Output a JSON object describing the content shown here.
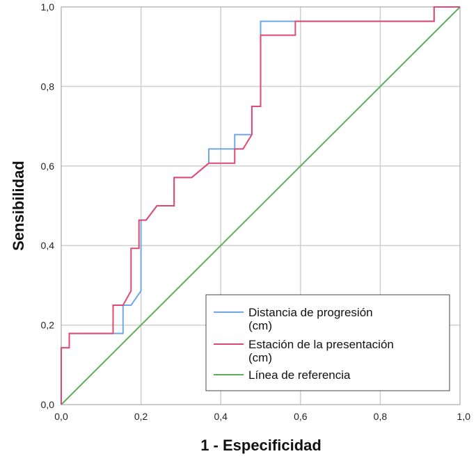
{
  "chart_data": {
    "type": "line",
    "title": "",
    "xlabel": "1 - Especificidad",
    "ylabel": "Sensibilidad",
    "xlim": [
      0,
      1
    ],
    "ylim": [
      0,
      1
    ],
    "grid": true,
    "legend_position": "bottom-right",
    "x_ticks": [
      "0,0",
      "0,2",
      "0,4",
      "0,6",
      "0,8",
      "1,0"
    ],
    "y_ticks": [
      "0,0",
      "0,2",
      "0,4",
      "0,6",
      "0,8",
      "1,0"
    ],
    "series": [
      {
        "name": "Distancia de progresión (cm)",
        "color": "#6fa8e8",
        "x": [
          0,
          0,
          0.02,
          0.02,
          0.155,
          0.155,
          0.175,
          0.175,
          0.2,
          0.2,
          0.213,
          0.213,
          0.24,
          0.24,
          0.283,
          0.283,
          0.327,
          0.327,
          0.37,
          0.37,
          0.435,
          0.435,
          0.478,
          0.478,
          0.5,
          0.5,
          0.587,
          0.587,
          0.935,
          0.935,
          1.0
        ],
        "y": [
          0,
          0.143,
          0.143,
          0.179,
          0.179,
          0.25,
          0.25,
          0.25,
          0.286,
          0.464,
          0.464,
          0.464,
          0.5,
          0.5,
          0.5,
          0.571,
          0.571,
          0.571,
          0.607,
          0.643,
          0.643,
          0.679,
          0.679,
          0.75,
          0.75,
          0.964,
          0.964,
          0.964,
          0.964,
          1.0,
          1.0
        ]
      },
      {
        "name": "Estación de la presentación (cm)",
        "color": "#e04a72",
        "x": [
          0,
          0,
          0.02,
          0.02,
          0.13,
          0.13,
          0.155,
          0.155,
          0.175,
          0.175,
          0.195,
          0.195,
          0.213,
          0.213,
          0.24,
          0.24,
          0.283,
          0.283,
          0.327,
          0.37,
          0.37,
          0.435,
          0.435,
          0.456,
          0.456,
          0.478,
          0.478,
          0.5,
          0.5,
          0.587,
          0.587,
          0.935,
          0.935,
          1.0
        ],
        "y": [
          0,
          0.143,
          0.143,
          0.179,
          0.179,
          0.25,
          0.25,
          0.25,
          0.286,
          0.393,
          0.393,
          0.464,
          0.464,
          0.464,
          0.5,
          0.5,
          0.5,
          0.571,
          0.571,
          0.607,
          0.607,
          0.607,
          0.643,
          0.643,
          0.643,
          0.679,
          0.75,
          0.75,
          0.929,
          0.929,
          0.964,
          0.964,
          1.0,
          1.0
        ]
      },
      {
        "name": "Línea de referencia",
        "color": "#5cae5c",
        "x": [
          0,
          1
        ],
        "y": [
          0,
          1
        ]
      }
    ],
    "legend": [
      "Distancia de progresión (cm)",
      "Estación de la presentación (cm)",
      "Línea de referencia"
    ]
  }
}
